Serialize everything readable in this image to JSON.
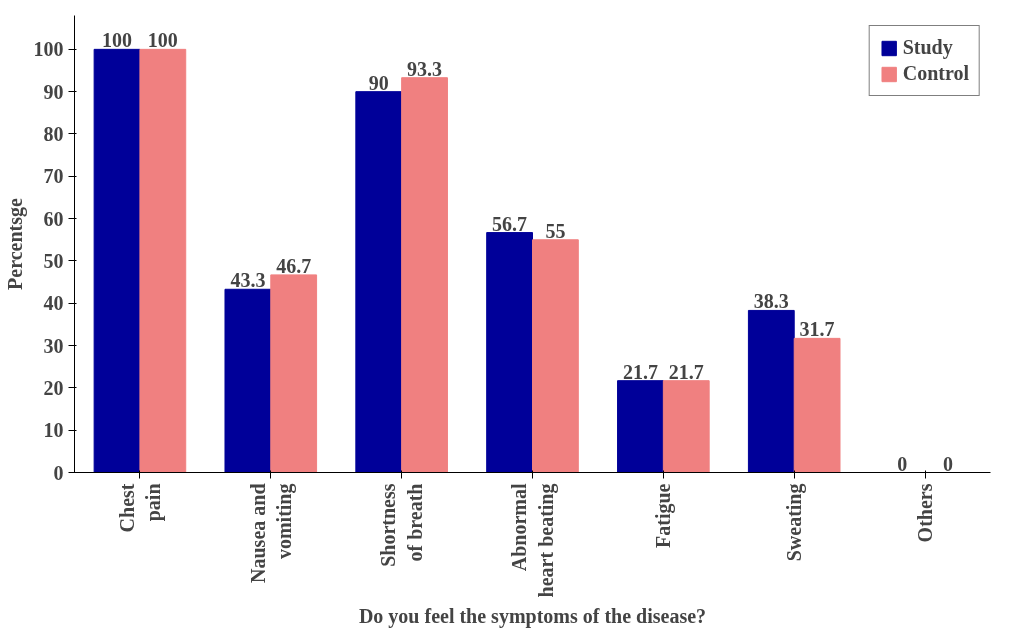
{
  "chart_data": {
    "type": "bar",
    "xlabel": "Do you feel the symptoms of the disease?",
    "ylabel": "Percentsge",
    "categories": [
      "Chest\npain",
      "Nausea and\nvomiting",
      "Shortness\nof breath",
      "Abnormal\nheart beating",
      "Fatigue",
      "Sweating",
      "Others"
    ],
    "series": [
      {
        "name": "Study",
        "color": "#000099",
        "values": [
          100,
          43.3,
          90,
          56.7,
          21.7,
          38.3,
          0
        ]
      },
      {
        "name": "Control",
        "color": "#f08080",
        "values": [
          100,
          46.7,
          93.3,
          55,
          21.7,
          31.7,
          0
        ]
      }
    ],
    "ylim": [
      0,
      108
    ],
    "yticks": [
      0,
      10,
      20,
      30,
      40,
      50,
      60,
      70,
      80,
      90,
      100
    ],
    "data_labels": true,
    "legend": "top right",
    "grid": false
  }
}
